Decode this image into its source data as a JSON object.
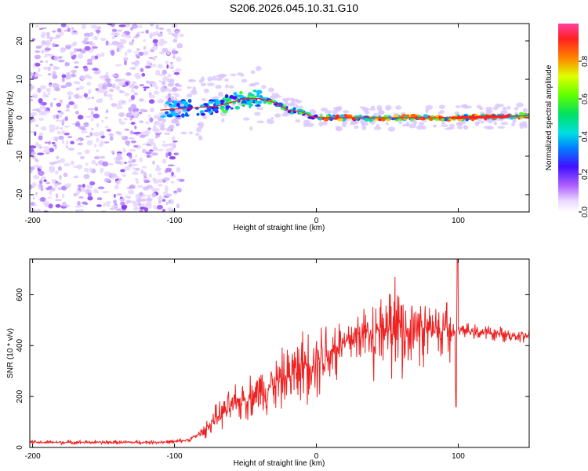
{
  "title": "S206.2026.045.10.31.G10",
  "chart_data": [
    {
      "type": "heatmap",
      "xlabel": "Height of straight line (km)",
      "ylabel": "Frequency (Hz)",
      "xlim": [
        -202,
        150
      ],
      "ylim": [
        -24.5,
        24.5
      ],
      "xticks": [
        -200,
        -100,
        0,
        100
      ],
      "xtick_labels": [
        "-200",
        "-100",
        "0",
        "100"
      ],
      "yticks": [
        -20,
        -10,
        0,
        10,
        20
      ],
      "ytick_labels": [
        "-20",
        "-10",
        "0",
        "10",
        "20"
      ],
      "colorbar": {
        "label": "Normalized spectral amplitude",
        "range": [
          0,
          1
        ],
        "ticks": [
          0.0,
          0.2,
          0.4,
          0.6,
          0.8
        ],
        "tick_labels": [
          "0.0",
          "0.2",
          "0.4",
          "0.6",
          "0.8"
        ]
      },
      "ridge_frequency_track": {
        "x": [
          -110,
          -90,
          -70,
          -60,
          -50,
          -40,
          -30,
          -20,
          -10,
          -5,
          0,
          50,
          100,
          150
        ],
        "y": [
          2,
          2.5,
          3,
          4,
          5,
          5,
          4,
          2,
          1.5,
          0.5,
          0,
          0,
          0,
          0.5
        ]
      }
    },
    {
      "type": "line",
      "xlabel": "Height of straight line (km)",
      "ylabel": "SNR (10 * v/v)",
      "xlim": [
        -202,
        150
      ],
      "ylim": [
        0,
        740
      ],
      "xticks": [
        -200,
        -100,
        0,
        100
      ],
      "xtick_labels": [
        "-200",
        "-100",
        "0",
        "100"
      ],
      "yticks": [
        0,
        200,
        400,
        600
      ],
      "ytick_labels": [
        "0",
        "200",
        "400",
        "600"
      ],
      "series": [
        {
          "name": "SNR",
          "color": "#ee2222",
          "x": [
            -202,
            -180,
            -160,
            -140,
            -120,
            -100,
            -90,
            -80,
            -70,
            -60,
            -50,
            -40,
            -30,
            -20,
            -10,
            0,
            10,
            20,
            30,
            40,
            50,
            60,
            70,
            80,
            90,
            100,
            110,
            120,
            130,
            140,
            150
          ],
          "y": [
            20,
            20,
            20,
            20,
            20,
            22,
            30,
            60,
            120,
            160,
            190,
            220,
            250,
            280,
            320,
            350,
            380,
            410,
            440,
            460,
            470,
            470,
            460,
            460,
            455,
            460,
            455,
            450,
            445,
            440,
            440
          ]
        }
      ]
    }
  ]
}
